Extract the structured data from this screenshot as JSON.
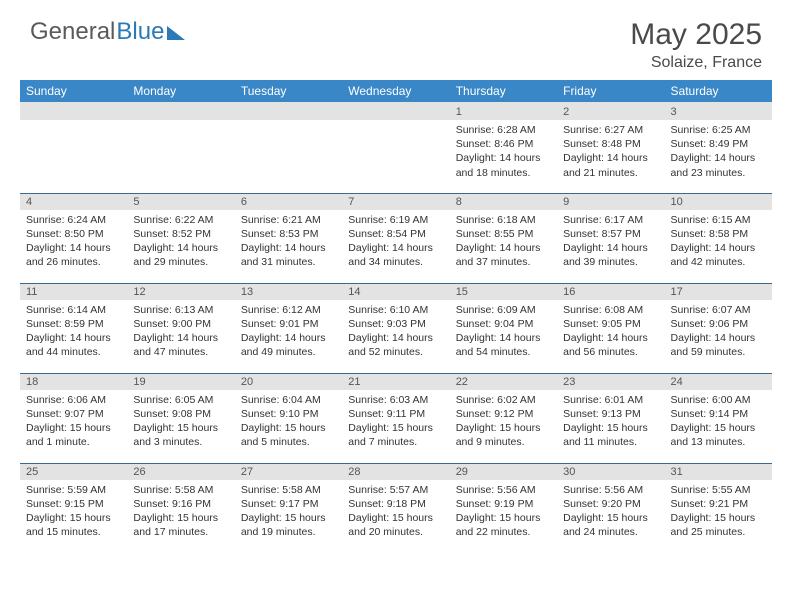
{
  "brand": {
    "part1": "General",
    "part2": "Blue"
  },
  "title": {
    "month": "May 2025",
    "location": "Solaize, France"
  },
  "colors": {
    "header_bg": "#3a87c8",
    "header_fg": "#ffffff",
    "daynum_bg": "#e3e3e3",
    "row_border": "#3a6a90",
    "text": "#333333",
    "title_color": "#4a4a4a",
    "logo_gray": "#5a5a5a",
    "logo_blue": "#2a7ab8"
  },
  "weekdays": [
    "Sunday",
    "Monday",
    "Tuesday",
    "Wednesday",
    "Thursday",
    "Friday",
    "Saturday"
  ],
  "weeks": [
    [
      null,
      null,
      null,
      null,
      {
        "n": "1",
        "sunrise": "6:28 AM",
        "sunset": "8:46 PM",
        "daylight": "14 hours and 18 minutes."
      },
      {
        "n": "2",
        "sunrise": "6:27 AM",
        "sunset": "8:48 PM",
        "daylight": "14 hours and 21 minutes."
      },
      {
        "n": "3",
        "sunrise": "6:25 AM",
        "sunset": "8:49 PM",
        "daylight": "14 hours and 23 minutes."
      }
    ],
    [
      {
        "n": "4",
        "sunrise": "6:24 AM",
        "sunset": "8:50 PM",
        "daylight": "14 hours and 26 minutes."
      },
      {
        "n": "5",
        "sunrise": "6:22 AM",
        "sunset": "8:52 PM",
        "daylight": "14 hours and 29 minutes."
      },
      {
        "n": "6",
        "sunrise": "6:21 AM",
        "sunset": "8:53 PM",
        "daylight": "14 hours and 31 minutes."
      },
      {
        "n": "7",
        "sunrise": "6:19 AM",
        "sunset": "8:54 PM",
        "daylight": "14 hours and 34 minutes."
      },
      {
        "n": "8",
        "sunrise": "6:18 AM",
        "sunset": "8:55 PM",
        "daylight": "14 hours and 37 minutes."
      },
      {
        "n": "9",
        "sunrise": "6:17 AM",
        "sunset": "8:57 PM",
        "daylight": "14 hours and 39 minutes."
      },
      {
        "n": "10",
        "sunrise": "6:15 AM",
        "sunset": "8:58 PM",
        "daylight": "14 hours and 42 minutes."
      }
    ],
    [
      {
        "n": "11",
        "sunrise": "6:14 AM",
        "sunset": "8:59 PM",
        "daylight": "14 hours and 44 minutes."
      },
      {
        "n": "12",
        "sunrise": "6:13 AM",
        "sunset": "9:00 PM",
        "daylight": "14 hours and 47 minutes."
      },
      {
        "n": "13",
        "sunrise": "6:12 AM",
        "sunset": "9:01 PM",
        "daylight": "14 hours and 49 minutes."
      },
      {
        "n": "14",
        "sunrise": "6:10 AM",
        "sunset": "9:03 PM",
        "daylight": "14 hours and 52 minutes."
      },
      {
        "n": "15",
        "sunrise": "6:09 AM",
        "sunset": "9:04 PM",
        "daylight": "14 hours and 54 minutes."
      },
      {
        "n": "16",
        "sunrise": "6:08 AM",
        "sunset": "9:05 PM",
        "daylight": "14 hours and 56 minutes."
      },
      {
        "n": "17",
        "sunrise": "6:07 AM",
        "sunset": "9:06 PM",
        "daylight": "14 hours and 59 minutes."
      }
    ],
    [
      {
        "n": "18",
        "sunrise": "6:06 AM",
        "sunset": "9:07 PM",
        "daylight": "15 hours and 1 minute."
      },
      {
        "n": "19",
        "sunrise": "6:05 AM",
        "sunset": "9:08 PM",
        "daylight": "15 hours and 3 minutes."
      },
      {
        "n": "20",
        "sunrise": "6:04 AM",
        "sunset": "9:10 PM",
        "daylight": "15 hours and 5 minutes."
      },
      {
        "n": "21",
        "sunrise": "6:03 AM",
        "sunset": "9:11 PM",
        "daylight": "15 hours and 7 minutes."
      },
      {
        "n": "22",
        "sunrise": "6:02 AM",
        "sunset": "9:12 PM",
        "daylight": "15 hours and 9 minutes."
      },
      {
        "n": "23",
        "sunrise": "6:01 AM",
        "sunset": "9:13 PM",
        "daylight": "15 hours and 11 minutes."
      },
      {
        "n": "24",
        "sunrise": "6:00 AM",
        "sunset": "9:14 PM",
        "daylight": "15 hours and 13 minutes."
      }
    ],
    [
      {
        "n": "25",
        "sunrise": "5:59 AM",
        "sunset": "9:15 PM",
        "daylight": "15 hours and 15 minutes."
      },
      {
        "n": "26",
        "sunrise": "5:58 AM",
        "sunset": "9:16 PM",
        "daylight": "15 hours and 17 minutes."
      },
      {
        "n": "27",
        "sunrise": "5:58 AM",
        "sunset": "9:17 PM",
        "daylight": "15 hours and 19 minutes."
      },
      {
        "n": "28",
        "sunrise": "5:57 AM",
        "sunset": "9:18 PM",
        "daylight": "15 hours and 20 minutes."
      },
      {
        "n": "29",
        "sunrise": "5:56 AM",
        "sunset": "9:19 PM",
        "daylight": "15 hours and 22 minutes."
      },
      {
        "n": "30",
        "sunrise": "5:56 AM",
        "sunset": "9:20 PM",
        "daylight": "15 hours and 24 minutes."
      },
      {
        "n": "31",
        "sunrise": "5:55 AM",
        "sunset": "9:21 PM",
        "daylight": "15 hours and 25 minutes."
      }
    ]
  ],
  "labels": {
    "sunrise": "Sunrise:",
    "sunset": "Sunset:",
    "daylight": "Daylight:"
  }
}
